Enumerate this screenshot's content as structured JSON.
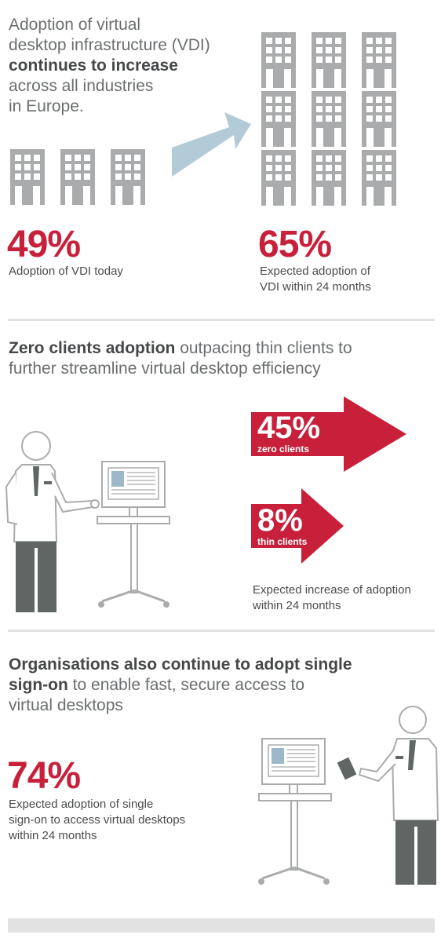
{
  "section1": {
    "headline_line1": "Adoption of virtual",
    "headline_line2": "desktop infrastructure (VDI)",
    "headline_bold": "continues to increase",
    "headline_line4": "across all industries",
    "headline_line5": "in Europe.",
    "today_value": "49%",
    "today_caption": "Adoption of VDI today",
    "future_value": "65%",
    "future_caption_line1": "Expected adoption of",
    "future_caption_line2": "VDI within 24 months",
    "colors": {
      "building": "#a9abad",
      "arrow": "#b3cbd6",
      "accent": "#c8203a"
    }
  },
  "section2": {
    "headline_bold": "Zero clients adoption",
    "headline_rest": " outpacing thin clients to",
    "headline_line2": "further streamline virtual desktop efficiency",
    "zero_value": "45%",
    "zero_label": "zero clients",
    "thin_value": "8%",
    "thin_label": "thin clients",
    "caption_line1": "Expected increase of adoption",
    "caption_line2": "within 24 months"
  },
  "section3": {
    "headline_bold_line1": "Organisations also continue to adopt single",
    "headline_bold_line2": "sign-on",
    "headline_rest_line2": " to enable fast, secure access to",
    "headline_line3": "virtual desktops",
    "value": "74%",
    "caption_line1": "Expected adoption of single",
    "caption_line2": "sign-on to access virtual desktops",
    "caption_line3": "within 24 months"
  }
}
